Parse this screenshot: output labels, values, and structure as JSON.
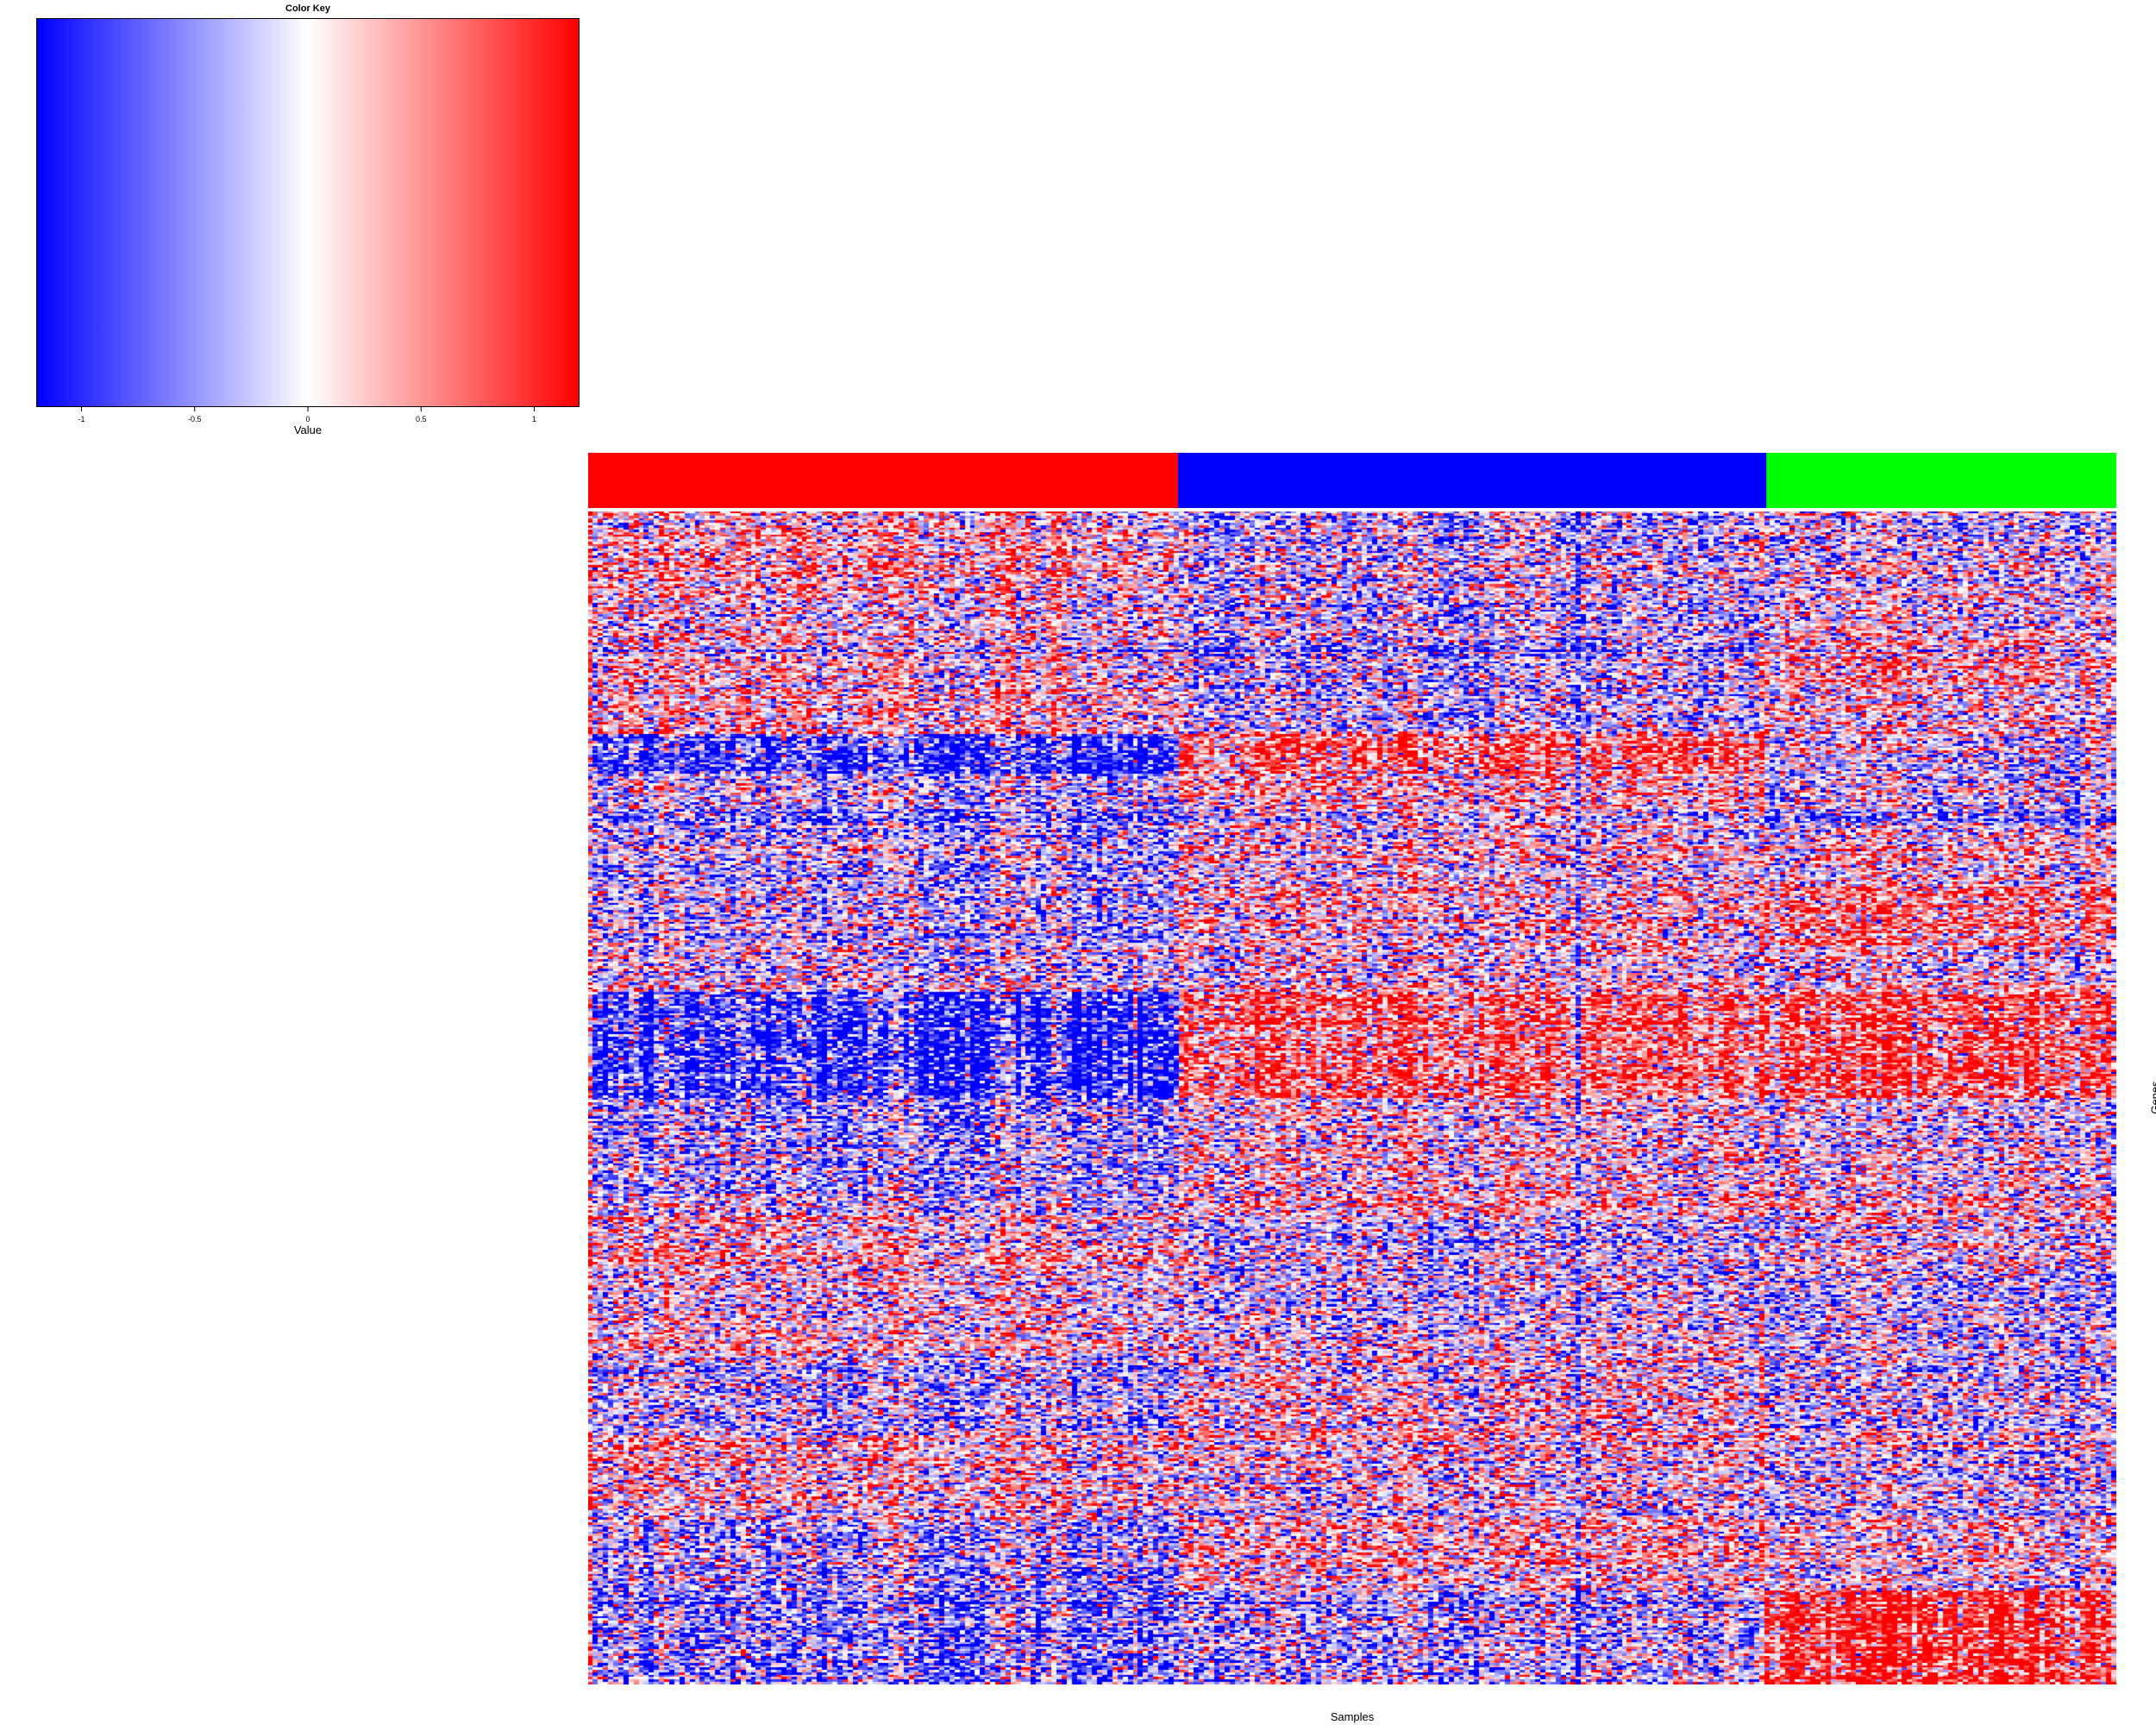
{
  "chart_data": {
    "type": "heatmap",
    "title": "",
    "xlabel": "Samples",
    "ylabel": "Genes",
    "color_key": {
      "title": "Color Key",
      "xlabel": "Value",
      "range": [
        -1.2,
        1.2
      ],
      "ticks": [
        -1,
        -0.5,
        0,
        0.5,
        1
      ],
      "tick_labels": [
        "-1",
        "-0.5",
        "0",
        "0.5",
        "1"
      ],
      "low_color": "#0000ff",
      "mid_color": "#ffffff",
      "high_color": "#ff0000"
    },
    "sample_groups": [
      {
        "color": "#ff0000",
        "fraction": 0.386
      },
      {
        "color": "#0000ff",
        "fraction": 0.385
      },
      {
        "color": "#00ff00",
        "fraction": 0.229
      }
    ],
    "n_samples": 300,
    "n_genes": 500,
    "gene_blocks": [
      {
        "rows": [
          0,
          35
        ],
        "group_means": [
          0.25,
          -0.2,
          -0.1
        ]
      },
      {
        "rows": [
          35,
          55
        ],
        "group_means": [
          0.1,
          -0.2,
          0.05
        ]
      },
      {
        "rows": [
          55,
          75
        ],
        "group_means": [
          0.2,
          -0.2,
          0.4
        ]
      },
      {
        "rows": [
          75,
          95
        ],
        "group_means": [
          0.25,
          -0.25,
          0.1
        ]
      },
      {
        "rows": [
          95,
          112
        ],
        "group_means": [
          -0.9,
          0.7,
          -0.1
        ]
      },
      {
        "rows": [
          112,
          135
        ],
        "group_means": [
          -0.4,
          0.1,
          -0.3
        ]
      },
      {
        "rows": [
          135,
          160
        ],
        "group_means": [
          -0.3,
          0.0,
          0.1
        ]
      },
      {
        "rows": [
          160,
          185
        ],
        "group_means": [
          -0.25,
          0.15,
          0.5
        ]
      },
      {
        "rows": [
          185,
          205
        ],
        "group_means": [
          -0.1,
          0.05,
          0.0
        ]
      },
      {
        "rows": [
          205,
          250
        ],
        "group_means": [
          -1.0,
          0.6,
          0.7
        ]
      },
      {
        "rows": [
          250,
          300
        ],
        "group_means": [
          -0.3,
          0.15,
          0.05
        ]
      },
      {
        "rows": [
          300,
          325
        ],
        "group_means": [
          0.2,
          -0.2,
          0.0
        ]
      },
      {
        "rows": [
          325,
          360
        ],
        "group_means": [
          0.1,
          -0.05,
          -0.2
        ]
      },
      {
        "rows": [
          360,
          395
        ],
        "group_means": [
          -0.2,
          0.2,
          -0.1
        ]
      },
      {
        "rows": [
          395,
          430
        ],
        "group_means": [
          0.15,
          0.0,
          -0.15
        ]
      },
      {
        "rows": [
          430,
          460
        ],
        "group_means": [
          -0.4,
          0.15,
          0.0
        ]
      },
      {
        "rows": [
          460,
          500
        ],
        "group_means": [
          -0.5,
          -0.3,
          1.0
        ]
      }
    ]
  }
}
